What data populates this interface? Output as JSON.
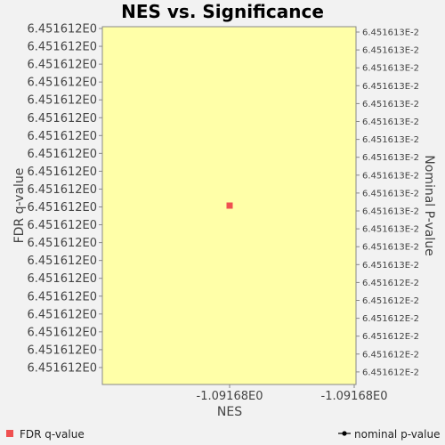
{
  "chart_data": {
    "type": "scatter",
    "title": "NES vs. Significance",
    "xlabel": "NES",
    "ylabel": "FDR q-value",
    "y2label": "Nominal P-value",
    "x_ticks": [
      "-1.09168E0",
      "-1.09168E0"
    ],
    "y_ticks_left": [
      "6.451612E0",
      "6.451612E0",
      "6.451612E0",
      "6.451612E0",
      "6.451612E0",
      "6.451612E0",
      "6.451612E0",
      "6.451612E0",
      "6.451612E0",
      "6.451612E0",
      "6.451612E0",
      "6.451612E0",
      "6.451612E0",
      "6.451612E0",
      "6.451612E0",
      "6.451612E0",
      "6.451612E0",
      "6.451612E0",
      "6.451612E0",
      "6.451612E0"
    ],
    "y_ticks_right": [
      "6.451613E-2",
      "6.451613E-2",
      "6.451613E-2",
      "6.451613E-2",
      "6.451613E-2",
      "6.451613E-2",
      "6.451613E-2",
      "6.451613E-2",
      "6.451613E-2",
      "6.451613E-2",
      "6.451613E-2",
      "6.451613E-2",
      "6.451613E-2",
      "6.451613E-2",
      "6.451612E-2",
      "6.451612E-2",
      "6.451612E-2",
      "6.451612E-2",
      "6.451612E-2",
      "6.451612E-2"
    ],
    "series": [
      {
        "name": "FDR q-value",
        "x": [
          -1.09168
        ],
        "y": [
          6.451612
        ],
        "color": "#ef5050",
        "marker": "square"
      },
      {
        "name": "nominal p-value",
        "x": [],
        "y": [],
        "color": "#000000",
        "marker": "line-circle"
      }
    ],
    "plot_background": "#ffffa8",
    "grid": false,
    "legend": "bottom"
  }
}
